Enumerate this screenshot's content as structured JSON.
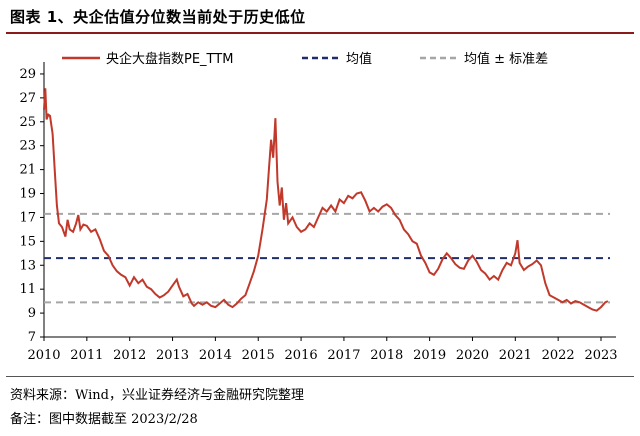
{
  "header": {
    "title": "图表 1、央企估值分位数当前处于历史低位"
  },
  "footer": {
    "source": "资料来源：Wind，兴业证券经济与金融研究院整理",
    "note": "备注：图中数据截至 2023/2/28"
  },
  "colors": {
    "series": "#c0392b",
    "mean": "#1f2d6b",
    "band": "#a6a6a6",
    "rule": "#8b1a1a"
  },
  "chart_data": {
    "type": "line",
    "title": "",
    "xlabel": "",
    "ylabel": "",
    "ylim": [
      7,
      30
    ],
    "xlim": [
      2010,
      2023.35
    ],
    "y_ticks": [
      7,
      9,
      11,
      13,
      15,
      17,
      19,
      21,
      23,
      25,
      27,
      29
    ],
    "x_ticks": [
      2010,
      2011,
      2012,
      2013,
      2014,
      2015,
      2016,
      2017,
      2018,
      2019,
      2020,
      2021,
      2022,
      2023
    ],
    "grid": false,
    "legend_position": "top",
    "series": [
      {
        "name": "央企大盘指数PE_TTM",
        "style": "solid",
        "x": [
          2010.0,
          2010.03,
          2010.06,
          2010.1,
          2010.14,
          2010.2,
          2010.25,
          2010.3,
          2010.35,
          2010.42,
          2010.5,
          2010.55,
          2010.6,
          2010.68,
          2010.75,
          2010.8,
          2010.85,
          2010.92,
          2011.0,
          2011.1,
          2011.2,
          2011.3,
          2011.4,
          2011.5,
          2011.6,
          2011.7,
          2011.8,
          2011.9,
          2012.0,
          2012.1,
          2012.2,
          2012.3,
          2012.4,
          2012.5,
          2012.6,
          2012.7,
          2012.8,
          2012.9,
          2013.0,
          2013.1,
          2013.15,
          2013.25,
          2013.35,
          2013.45,
          2013.5,
          2013.6,
          2013.7,
          2013.8,
          2013.9,
          2014.0,
          2014.1,
          2014.2,
          2014.3,
          2014.4,
          2014.5,
          2014.6,
          2014.7,
          2014.8,
          2014.9,
          2015.0,
          2015.1,
          2015.2,
          2015.25,
          2015.3,
          2015.35,
          2015.4,
          2015.45,
          2015.5,
          2015.55,
          2015.6,
          2015.65,
          2015.7,
          2015.8,
          2015.9,
          2016.0,
          2016.1,
          2016.2,
          2016.3,
          2016.4,
          2016.5,
          2016.6,
          2016.7,
          2016.8,
          2016.9,
          2017.0,
          2017.1,
          2017.2,
          2017.3,
          2017.4,
          2017.5,
          2017.6,
          2017.7,
          2017.8,
          2017.9,
          2018.0,
          2018.1,
          2018.2,
          2018.3,
          2018.4,
          2018.5,
          2018.6,
          2018.7,
          2018.8,
          2018.9,
          2019.0,
          2019.1,
          2019.2,
          2019.3,
          2019.4,
          2019.5,
          2019.6,
          2019.7,
          2019.8,
          2019.9,
          2020.0,
          2020.1,
          2020.2,
          2020.3,
          2020.4,
          2020.5,
          2020.6,
          2020.7,
          2020.8,
          2020.9,
          2021.0,
          2021.05,
          2021.1,
          2021.2,
          2021.3,
          2021.4,
          2021.5,
          2021.6,
          2021.7,
          2021.8,
          2021.9,
          2022.0,
          2022.1,
          2022.2,
          2022.3,
          2022.4,
          2022.5,
          2022.6,
          2022.7,
          2022.8,
          2022.9,
          2023.0,
          2023.1,
          2023.16
        ],
        "y": [
          26.0,
          27.8,
          25.2,
          25.6,
          25.5,
          24.0,
          21.0,
          18.0,
          16.5,
          16.2,
          15.4,
          16.8,
          16.0,
          15.8,
          16.5,
          17.2,
          16.0,
          16.4,
          16.3,
          15.8,
          16.0,
          15.2,
          14.2,
          13.8,
          13.0,
          12.5,
          12.2,
          12.0,
          11.3,
          12.0,
          11.5,
          11.8,
          11.2,
          11.0,
          10.6,
          10.3,
          10.5,
          10.8,
          11.3,
          11.8,
          11.2,
          10.4,
          10.6,
          9.8,
          9.6,
          9.9,
          9.7,
          9.9,
          9.6,
          9.5,
          9.8,
          10.1,
          9.7,
          9.5,
          9.8,
          10.2,
          10.5,
          11.5,
          12.5,
          13.8,
          16.0,
          18.5,
          21.0,
          23.5,
          22.0,
          25.3,
          20.0,
          18.0,
          19.5,
          16.8,
          18.2,
          16.5,
          17.0,
          16.2,
          15.8,
          16.0,
          16.5,
          16.2,
          17.0,
          17.8,
          17.5,
          18.0,
          17.5,
          18.5,
          18.2,
          18.8,
          18.6,
          19.0,
          19.1,
          18.4,
          17.5,
          17.8,
          17.5,
          17.9,
          18.1,
          17.8,
          17.2,
          16.8,
          16.0,
          15.6,
          15.0,
          14.8,
          13.8,
          13.2,
          12.4,
          12.2,
          12.7,
          13.5,
          14.0,
          13.6,
          13.1,
          12.8,
          12.7,
          13.4,
          13.8,
          13.3,
          12.6,
          12.3,
          11.8,
          12.1,
          11.8,
          12.6,
          13.2,
          13.0,
          14.0,
          15.1,
          13.2,
          12.6,
          12.9,
          13.1,
          13.4,
          13.0,
          11.5,
          10.5,
          10.3,
          10.1,
          9.9,
          10.1,
          9.8,
          10.0,
          9.9,
          9.7,
          9.5,
          9.3,
          9.2,
          9.5,
          9.9,
          10.0
        ]
      },
      {
        "name": "均值",
        "style": "dashed",
        "value": 13.6
      },
      {
        "name": "均值 ± 标准差",
        "style": "dashed",
        "values": [
          17.3,
          9.9
        ]
      }
    ]
  }
}
